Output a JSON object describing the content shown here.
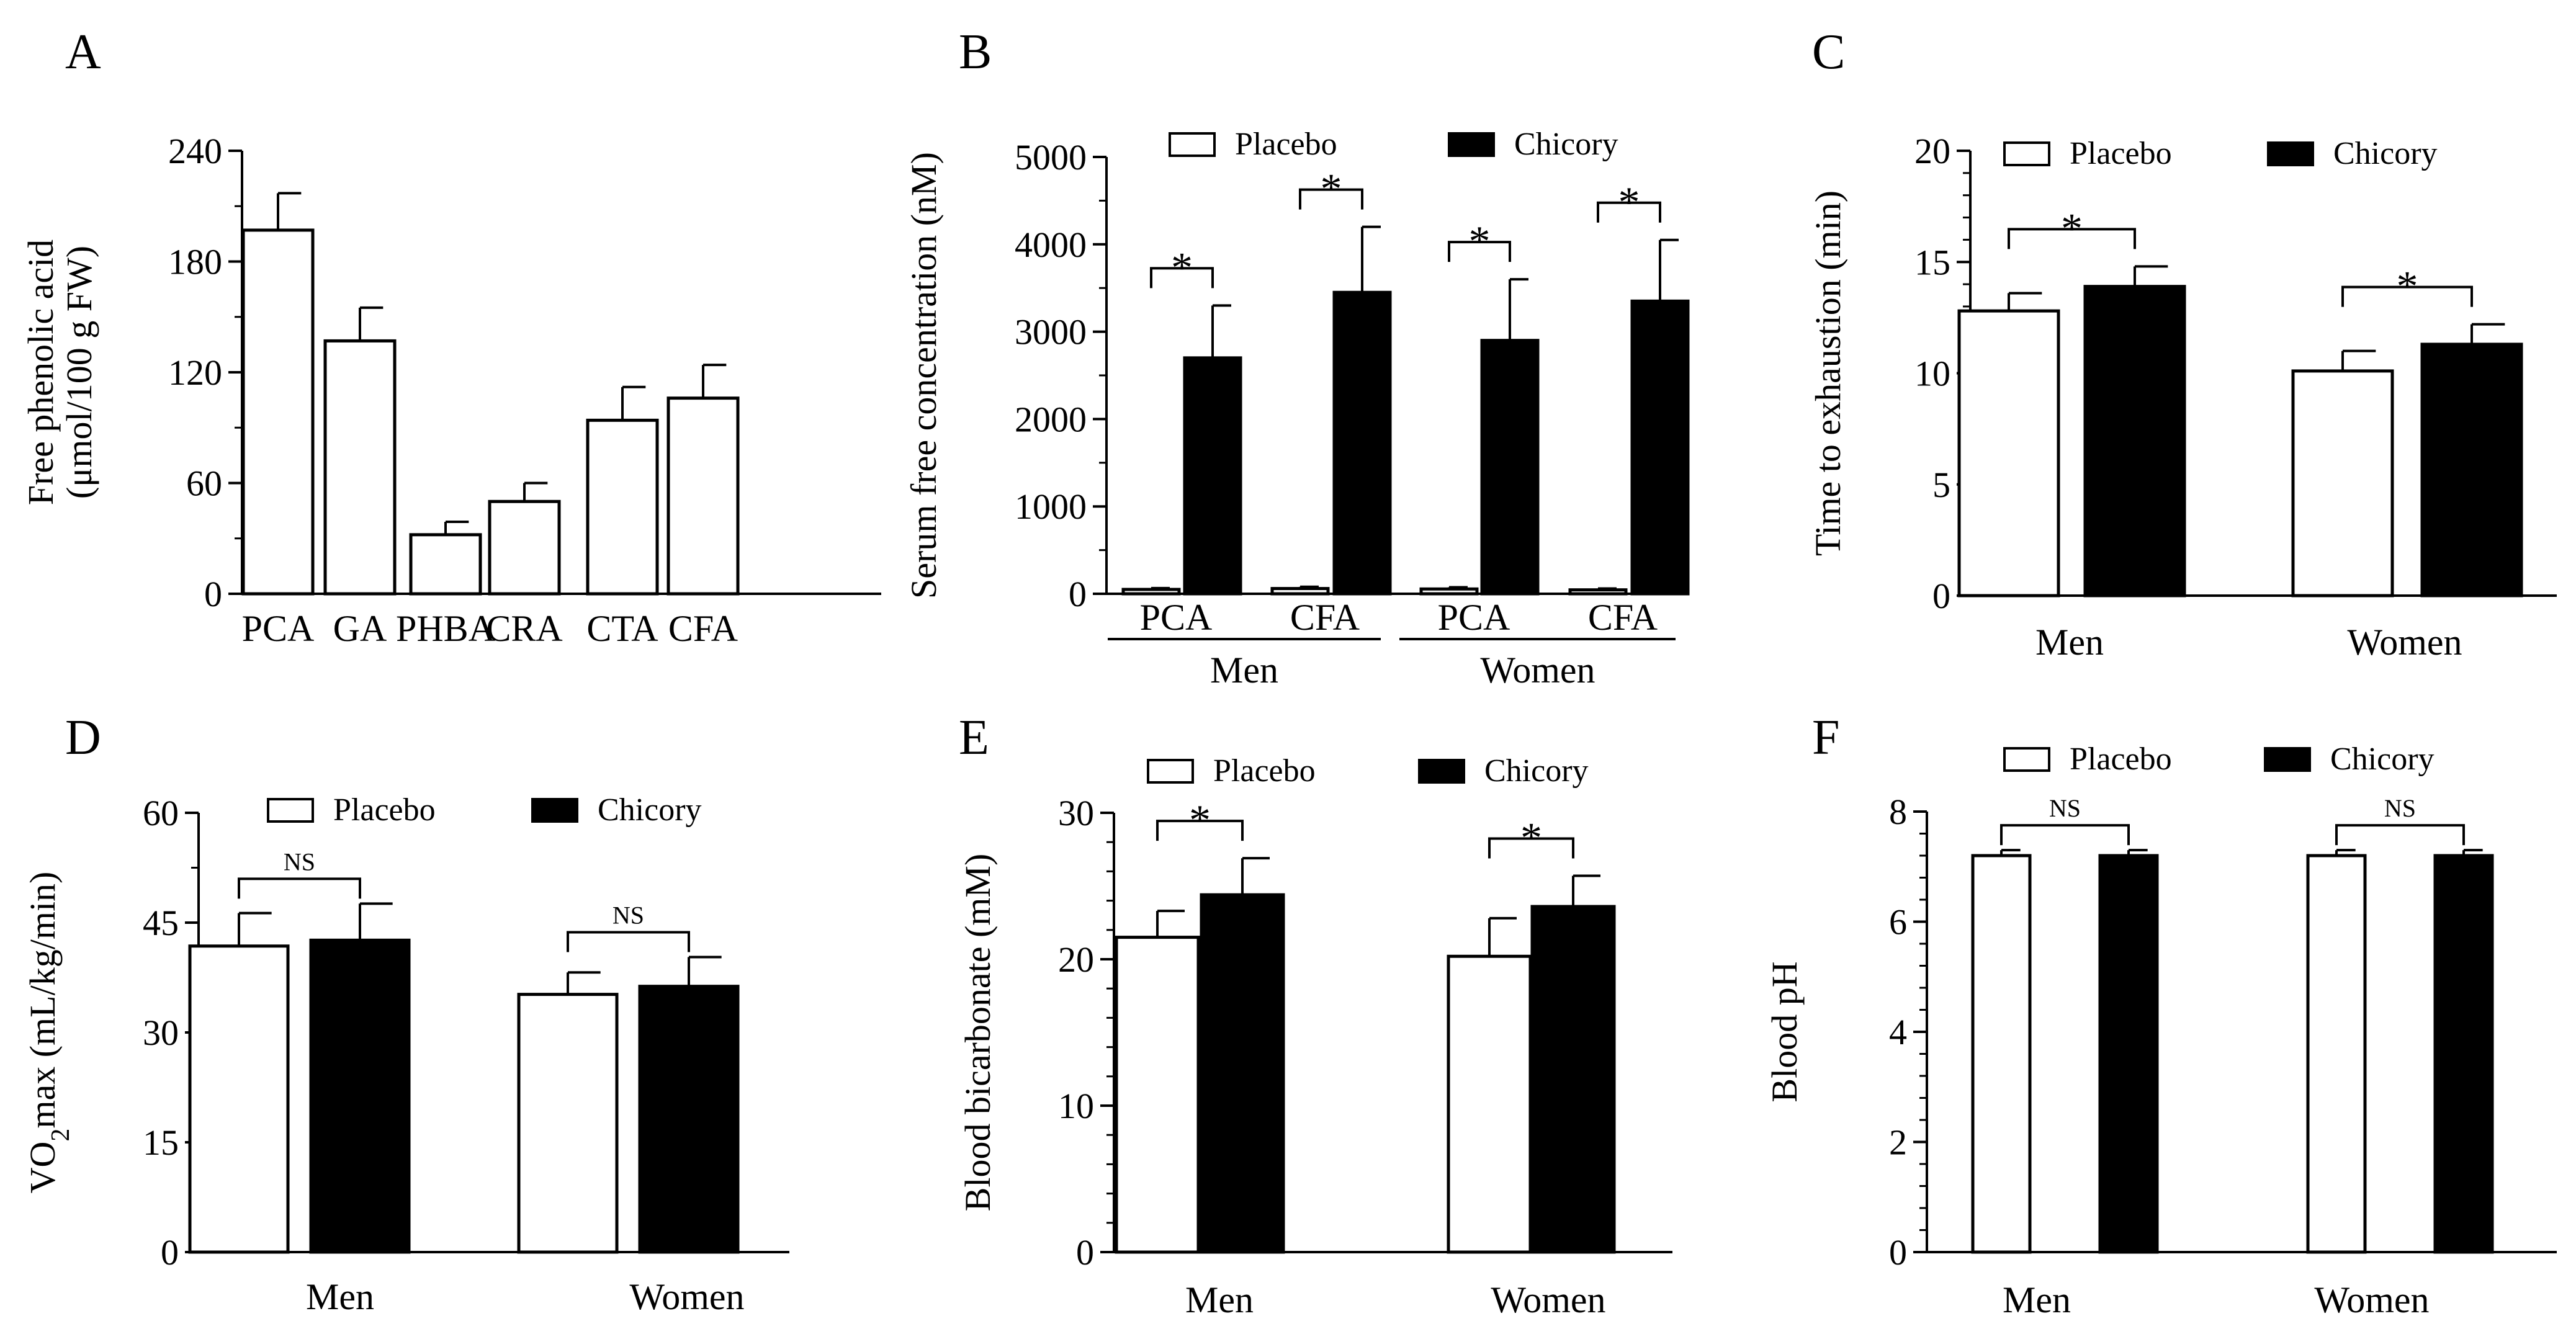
{
  "figure": {
    "series_names": [
      "Placebo",
      "Chicory"
    ],
    "colors": {
      "placebo": "#ffffff",
      "chicory": "#000000",
      "stroke": "#000000"
    }
  },
  "chart_data": [
    {
      "panel": "A",
      "type": "bar",
      "title": "",
      "ylabel": [
        "Free phenolic acid",
        "(μmol/100 g FW)"
      ],
      "xlabel": "",
      "ylim": [
        0,
        240
      ],
      "yticks": [
        0,
        60,
        120,
        180,
        240
      ],
      "categories": [
        "PCA",
        "GA",
        "PHBA",
        "CRA",
        "CTA",
        "CFA"
      ],
      "values": [
        197,
        137,
        32,
        50,
        94,
        106
      ],
      "errors": [
        20,
        18,
        7,
        10,
        18,
        18
      ],
      "legend": "none"
    },
    {
      "panel": "B",
      "type": "bar",
      "title": "",
      "ylabel": "Serum free concentration (nM)",
      "xlabel": "",
      "ylim": [
        0,
        5000
      ],
      "yticks": [
        0,
        1000,
        2000,
        3000,
        4000,
        5000
      ],
      "categories": [
        "PCA",
        "CFA",
        "PCA",
        "CFA"
      ],
      "group_labels": [
        "Men",
        "Women"
      ],
      "series": [
        {
          "name": "Placebo",
          "values": [
            50,
            60,
            55,
            45
          ],
          "errors": [
            15,
            20,
            20,
            15
          ]
        },
        {
          "name": "Chicory",
          "values": [
            2700,
            3450,
            2900,
            3350
          ],
          "errors": [
            600,
            750,
            700,
            700
          ]
        }
      ],
      "annotations": [
        "*",
        "*",
        "*",
        "*"
      ],
      "legend": "top"
    },
    {
      "panel": "C",
      "type": "bar",
      "title": "",
      "ylabel": "Time to exhaustion (min)",
      "xlabel": "",
      "ylim": [
        0,
        20
      ],
      "yticks": [
        0,
        5,
        10,
        15,
        20
      ],
      "categories": [
        "Men",
        "Women"
      ],
      "series": [
        {
          "name": "Placebo",
          "values": [
            12.8,
            10.1
          ],
          "errors": [
            0.8,
            0.9
          ]
        },
        {
          "name": "Chicory",
          "values": [
            13.9,
            11.3
          ],
          "errors": [
            0.9,
            0.9
          ]
        }
      ],
      "annotations": [
        "*",
        "*"
      ],
      "legend": "top"
    },
    {
      "panel": "D",
      "type": "bar",
      "title": "",
      "ylabel": "VO2max (mL/kg/min)",
      "xlabel": "",
      "ylim": [
        0,
        60
      ],
      "yticks": [
        0,
        15,
        30,
        45,
        60
      ],
      "categories": [
        "Men",
        "Women"
      ],
      "series": [
        {
          "name": "Placebo",
          "values": [
            41.8,
            35.2
          ],
          "errors": [
            4.5,
            3.0
          ]
        },
        {
          "name": "Chicory",
          "values": [
            42.6,
            36.3
          ],
          "errors": [
            5.0,
            4.0
          ]
        }
      ],
      "annotations": [
        "NS",
        "NS"
      ],
      "legend": "top"
    },
    {
      "panel": "E",
      "type": "bar",
      "title": "",
      "ylabel": "Blood bicarbonate (mM)",
      "xlabel": "",
      "ylim": [
        0,
        30
      ],
      "yticks": [
        0,
        10,
        20,
        30
      ],
      "categories": [
        "Men",
        "Women"
      ],
      "series": [
        {
          "name": "Placebo",
          "values": [
            21.5,
            20.2
          ],
          "errors": [
            1.8,
            2.6
          ]
        },
        {
          "name": "Chicory",
          "values": [
            24.4,
            23.6
          ],
          "errors": [
            2.5,
            2.1
          ]
        }
      ],
      "annotations": [
        "*",
        "*"
      ],
      "legend": "top"
    },
    {
      "panel": "F",
      "type": "bar",
      "title": "",
      "ylabel": "Blood pH",
      "xlabel": "",
      "ylim": [
        0,
        8
      ],
      "yticks": [
        0,
        2,
        4,
        6,
        8
      ],
      "categories": [
        "Men",
        "Women"
      ],
      "series": [
        {
          "name": "Placebo",
          "values": [
            7.2,
            7.2
          ],
          "errors": [
            0.1,
            0.1
          ]
        },
        {
          "name": "Chicory",
          "values": [
            7.2,
            7.2
          ],
          "errors": [
            0.1,
            0.1
          ]
        }
      ],
      "annotations": [
        "NS",
        "NS"
      ],
      "legend": "top"
    }
  ]
}
